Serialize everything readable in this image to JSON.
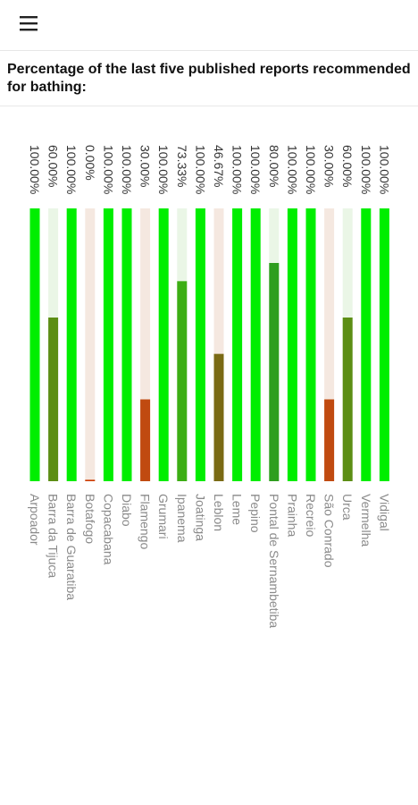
{
  "header": {
    "title": "Percentage of the last five published reports recommended for bathing:"
  },
  "icons": {
    "menu": "hamburger-menu-icon"
  },
  "colors": {
    "good": "#00ee00",
    "track_good": "#eaf6e6",
    "track_bad": "#f5e8e0",
    "bad": "#cc3a00",
    "mid_60": "#5c8e14",
    "mid_73": "#3cae14",
    "mid_80": "#2e9e1e",
    "mid_47": "#7a6a14",
    "mid_30": "#c04a10"
  },
  "chart_data": {
    "type": "bar",
    "orientation": "vertical",
    "ylim": [
      0,
      100
    ],
    "grid": false,
    "categories": [
      "Arpoador",
      "Barra da Tijuca",
      "Barra de Guaratiba",
      "Botafogo",
      "Copacabana",
      "Diabo",
      "Flamengo",
      "Grumari",
      "Ipanema",
      "Joatinga",
      "Leblon",
      "Leme",
      "Pepino",
      "Pontal de Sernambetiba",
      "Prainha",
      "Recreio",
      "São Conrado",
      "Urca",
      "Vermelha",
      "Vidigal"
    ],
    "values": [
      100,
      60,
      100,
      0,
      100,
      100,
      30,
      100,
      73.33,
      100,
      46.67,
      100,
      100,
      80,
      100,
      100,
      30,
      60,
      100,
      100
    ],
    "value_labels": [
      "100.00%",
      "60.00%",
      "100.00%",
      "0.00%",
      "100.00%",
      "100.00%",
      "30.00%",
      "100.00%",
      "73.33%",
      "100.00%",
      "46.67%",
      "100.00%",
      "100.00%",
      "80.00%",
      "100.00%",
      "100.00%",
      "30.00%",
      "60.00%",
      "100.00%",
      "100.00%"
    ]
  }
}
